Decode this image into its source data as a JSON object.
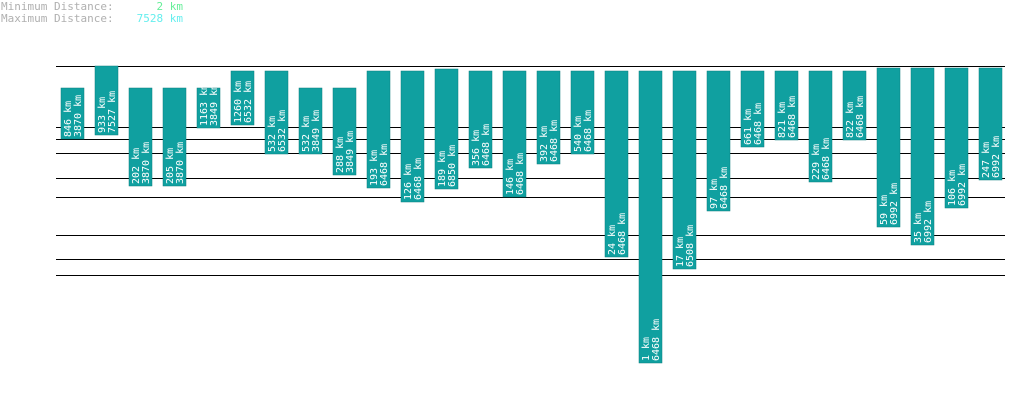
{
  "header": {
    "min_label": "Minimum Distance:",
    "min_value": "2 km",
    "max_label": "Maximum Distance:",
    "max_value": "7528 km"
  },
  "colors": {
    "bar": "#10a0a0",
    "bar_edge": "#0b7f7f",
    "line": "#000000",
    "min_value": "#66ee99",
    "max_value": "#66eeee"
  },
  "chart_data": {
    "type": "bar",
    "title": "",
    "xlabel": "",
    "ylabel": "",
    "bars": [
      {
        "km": 846,
        "total": 3870
      },
      {
        "km": 933,
        "total": 7527
      },
      {
        "km": 202,
        "total": 3870
      },
      {
        "km": 205,
        "total": 3870
      },
      {
        "km": 1163,
        "total": 3849
      },
      {
        "km": 1260,
        "total": 6532
      },
      {
        "km": 532,
        "total": 6532
      },
      {
        "km": 532,
        "total": 3849
      },
      {
        "km": 288,
        "total": 3849
      },
      {
        "km": 193,
        "total": 6468
      },
      {
        "km": 126,
        "total": 6468
      },
      {
        "km": 189,
        "total": 6850
      },
      {
        "km": 356,
        "total": 6468
      },
      {
        "km": 146,
        "total": 6468
      },
      {
        "km": 392,
        "total": 6468
      },
      {
        "km": 540,
        "total": 6468
      },
      {
        "km": 24,
        "total": 6468
      },
      {
        "km": 1,
        "total": 6468
      },
      {
        "km": 17,
        "total": 6508
      },
      {
        "km": 97,
        "total": 6468
      },
      {
        "km": 661,
        "total": 6468
      },
      {
        "km": 821,
        "total": 6468
      },
      {
        "km": 229,
        "total": 6468
      },
      {
        "km": 822,
        "total": 6468
      },
      {
        "km": 59,
        "total": 6992
      },
      {
        "km": 35,
        "total": 6992
      },
      {
        "km": 106,
        "total": 6992
      },
      {
        "km": 247,
        "total": 6992
      }
    ],
    "unit": "km",
    "reference_km": [
      2,
      7528
    ],
    "gridlines_km": [
      7528,
      1189,
      830,
      546,
      257,
      146,
      47,
      23,
      14
    ]
  }
}
